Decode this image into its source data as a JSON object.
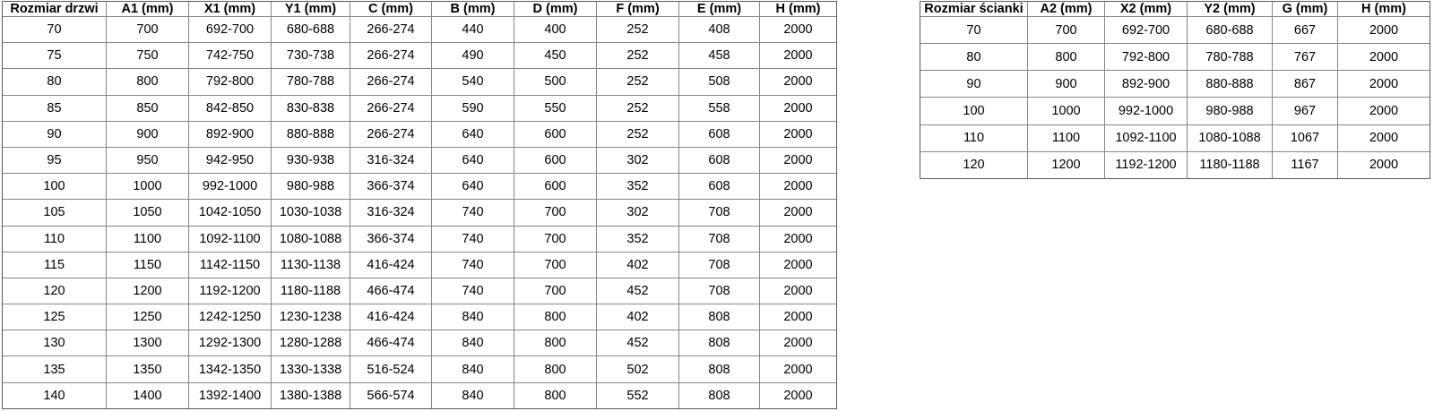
{
  "page": {
    "background_color": "#ffffff",
    "text_color": "#000000",
    "inner_border_color": "#868686",
    "outer_border_color": "#595959"
  },
  "door_table": {
    "headers": [
      "Rozmiar drzwi",
      "A1 (mm)",
      "X1 (mm)",
      "Y1 (mm)",
      "C (mm)",
      "B (mm)",
      "D (mm)",
      "F (mm)",
      "E (mm)",
      "H (mm)"
    ],
    "rows": [
      [
        "70",
        "700",
        "692-700",
        "680-688",
        "266-274",
        "440",
        "400",
        "252",
        "408",
        "2000"
      ],
      [
        "75",
        "750",
        "742-750",
        "730-738",
        "266-274",
        "490",
        "450",
        "252",
        "458",
        "2000"
      ],
      [
        "80",
        "800",
        "792-800",
        "780-788",
        "266-274",
        "540",
        "500",
        "252",
        "508",
        "2000"
      ],
      [
        "85",
        "850",
        "842-850",
        "830-838",
        "266-274",
        "590",
        "550",
        "252",
        "558",
        "2000"
      ],
      [
        "90",
        "900",
        "892-900",
        "880-888",
        "266-274",
        "640",
        "600",
        "252",
        "608",
        "2000"
      ],
      [
        "95",
        "950",
        "942-950",
        "930-938",
        "316-324",
        "640",
        "600",
        "302",
        "608",
        "2000"
      ],
      [
        "100",
        "1000",
        "992-1000",
        "980-988",
        "366-374",
        "640",
        "600",
        "352",
        "608",
        "2000"
      ],
      [
        "105",
        "1050",
        "1042-1050",
        "1030-1038",
        "316-324",
        "740",
        "700",
        "302",
        "708",
        "2000"
      ],
      [
        "110",
        "1100",
        "1092-1100",
        "1080-1088",
        "366-374",
        "740",
        "700",
        "352",
        "708",
        "2000"
      ],
      [
        "115",
        "1150",
        "1142-1150",
        "1130-1138",
        "416-424",
        "740",
        "700",
        "402",
        "708",
        "2000"
      ],
      [
        "120",
        "1200",
        "1192-1200",
        "1180-1188",
        "466-474",
        "740",
        "700",
        "452",
        "708",
        "2000"
      ],
      [
        "125",
        "1250",
        "1242-1250",
        "1230-1238",
        "416-424",
        "840",
        "800",
        "402",
        "808",
        "2000"
      ],
      [
        "130",
        "1300",
        "1292-1300",
        "1280-1288",
        "466-474",
        "840",
        "800",
        "452",
        "808",
        "2000"
      ],
      [
        "135",
        "1350",
        "1342-1350",
        "1330-1338",
        "516-524",
        "840",
        "800",
        "502",
        "808",
        "2000"
      ],
      [
        "140",
        "1400",
        "1392-1400",
        "1380-1388",
        "566-574",
        "840",
        "800",
        "552",
        "808",
        "2000"
      ]
    ]
  },
  "wall_table": {
    "headers": [
      "Rozmiar ścianki",
      "A2 (mm)",
      "X2 (mm)",
      "Y2 (mm)",
      "G (mm)",
      "H (mm)"
    ],
    "rows": [
      [
        "70",
        "700",
        "692-700",
        "680-688",
        "667",
        "2000"
      ],
      [
        "80",
        "800",
        "792-800",
        "780-788",
        "767",
        "2000"
      ],
      [
        "90",
        "900",
        "892-900",
        "880-888",
        "867",
        "2000"
      ],
      [
        "100",
        "1000",
        "992-1000",
        "980-988",
        "967",
        "2000"
      ],
      [
        "110",
        "1100",
        "1092-1100",
        "1080-1088",
        "1067",
        "2000"
      ],
      [
        "120",
        "1200",
        "1192-1200",
        "1180-1188",
        "1167",
        "2000"
      ]
    ]
  }
}
